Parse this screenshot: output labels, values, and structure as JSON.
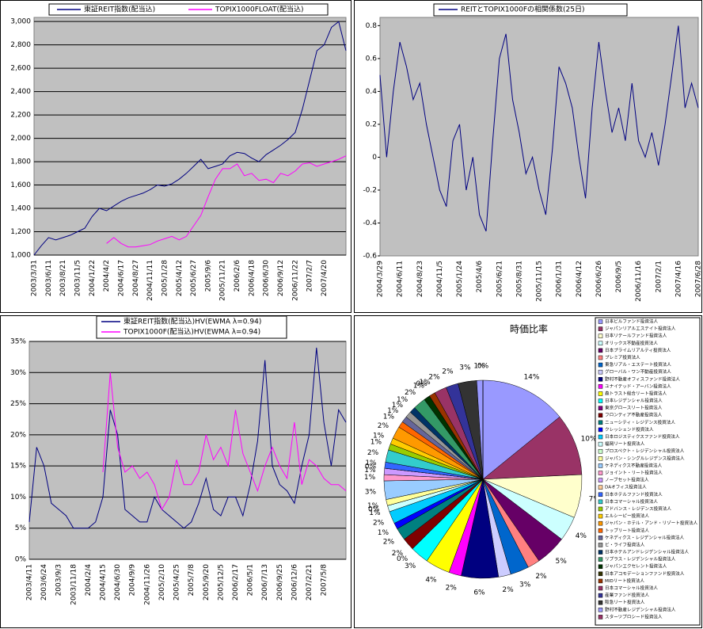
{
  "chart_data": [
    {
      "type": "line",
      "legend": "top",
      "grid": true,
      "categories": [
        "2003/3/31",
        null,
        "2003/6/11",
        null,
        "2003/8/21",
        null,
        "2003/11/5",
        null,
        "2004/1/22",
        null,
        "2004/4/2",
        null,
        "2004/6/17",
        null,
        "2004/8/27",
        null,
        "2004/11/11",
        null,
        "2005/1/28",
        null,
        "2005/4/12",
        null,
        "2005/6/27",
        null,
        "2005/9/6",
        null,
        "2005/11/21",
        null,
        "2006/2/6",
        null,
        "2006/4/18",
        null,
        "2006/6/30",
        null,
        "2006/9/12",
        null,
        "2006/11/22",
        null,
        "2007/2/7",
        null,
        "2007/4/20",
        null,
        null,
        null
      ],
      "ylim": [
        1000,
        3035
      ],
      "yticks": [
        {
          "value": 1000,
          "label": "1,000"
        },
        {
          "value": 1200,
          "label": "1,200"
        },
        {
          "value": 1400,
          "label": "1,400"
        },
        {
          "value": 1600,
          "label": "1,600"
        },
        {
          "value": 1800,
          "label": "1,800"
        },
        {
          "value": 2000,
          "label": "2,000"
        },
        {
          "value": 2200,
          "label": "2,200"
        },
        {
          "value": 2400,
          "label": "2,400"
        },
        {
          "value": 2600,
          "label": "2,600"
        },
        {
          "value": 2800,
          "label": "2,800"
        },
        {
          "value": 3000,
          "label": "3,000"
        }
      ],
      "series": [
        {
          "name": "東証REIT指数(配当込)",
          "color": "#000080",
          "values": [
            1000,
            1080,
            1150,
            1130,
            1150,
            1170,
            1200,
            1230,
            1330,
            1400,
            1380,
            1420,
            1460,
            1490,
            1510,
            1530,
            1560,
            1600,
            1590,
            1610,
            1650,
            1700,
            1760,
            1820,
            1740,
            1760,
            1780,
            1850,
            1880,
            1870,
            1830,
            1800,
            1860,
            1900,
            1940,
            1990,
            2050,
            2250,
            2500,
            2750,
            2800,
            2950,
            3000,
            2750
          ]
        },
        {
          "name": "TOPIX1000FLOAT(配当込)",
          "color": "#ff00ff",
          "values": [
            null,
            null,
            null,
            null,
            null,
            null,
            null,
            null,
            null,
            null,
            1100,
            1150,
            1100,
            1070,
            1070,
            1080,
            1090,
            1120,
            1140,
            1160,
            1130,
            1160,
            1250,
            1340,
            1500,
            1650,
            1740,
            1740,
            1780,
            1680,
            1700,
            1640,
            1650,
            1620,
            1700,
            1680,
            1720,
            1780,
            1790,
            1760,
            1780,
            1800,
            1820,
            1850
          ]
        }
      ]
    },
    {
      "type": "line",
      "legend": "top",
      "grid": false,
      "categories": [
        "2004/3/29",
        null,
        null,
        "2004/6/11",
        null,
        null,
        "2004/8/23",
        null,
        null,
        "2004/11/5",
        null,
        null,
        "2005/1/24",
        null,
        null,
        "2005/4/6",
        null,
        null,
        "2005/6/21",
        null,
        null,
        "2005/8/31",
        null,
        null,
        "2005/11/15",
        null,
        null,
        "2006/1/31",
        null,
        null,
        "2006/4/12",
        null,
        null,
        "2006/6/26",
        null,
        null,
        "2006/9/5",
        null,
        null,
        "2006/11/16",
        null,
        null,
        "2007/2/1",
        null,
        null,
        "2007/4/16",
        null,
        null,
        "2007/6/28"
      ],
      "ylim": [
        -0.6,
        0.85
      ],
      "yticks": [
        -0.6,
        -0.4,
        -0.2,
        0,
        0.2,
        0.4,
        0.6,
        0.8
      ],
      "series": [
        {
          "name": "REITとTOPIX1000Fの相関係数(25日)",
          "color": "#000080",
          "values": [
            0.5,
            0.0,
            0.4,
            0.7,
            0.55,
            0.35,
            0.45,
            0.2,
            0.0,
            -0.2,
            -0.3,
            0.1,
            0.2,
            -0.2,
            0.0,
            -0.35,
            -0.45,
            0.1,
            0.6,
            0.75,
            0.35,
            0.15,
            -0.1,
            0.0,
            -0.2,
            -0.35,
            0.05,
            0.55,
            0.45,
            0.3,
            0.0,
            -0.25,
            0.3,
            0.7,
            0.4,
            0.15,
            0.3,
            0.1,
            0.45,
            0.1,
            0.0,
            0.15,
            -0.05,
            0.2,
            0.5,
            0.8,
            0.3,
            0.45,
            0.3
          ]
        }
      ]
    },
    {
      "type": "line",
      "legend": "top",
      "grid": true,
      "categories": [
        "2003/4/11",
        null,
        "2003/6/24",
        null,
        "2003/9/3",
        null,
        "2003/11/18",
        null,
        "2004/2/4",
        null,
        "2004/4/15",
        null,
        "2004/6/30",
        null,
        "2004/9/9",
        null,
        "2004/11/26",
        null,
        "2005/2/10",
        null,
        "2005/4/25",
        null,
        "2005/7/8",
        null,
        "2005/9/20",
        null,
        "2005/12/5",
        null,
        "2006/2/17",
        null,
        "2006/5/1",
        null,
        "2006/7/13",
        null,
        "2006/9/25",
        null,
        "2006/12/6",
        null,
        "2007/2/21",
        null,
        "2007/5/8",
        null,
        null,
        null
      ],
      "ylim": [
        0,
        35
      ],
      "yticks": [
        {
          "value": 0,
          "label": "0%"
        },
        {
          "value": 5,
          "label": "5%"
        },
        {
          "value": 10,
          "label": "10%"
        },
        {
          "value": 15,
          "label": "15%"
        },
        {
          "value": 20,
          "label": "20%"
        },
        {
          "value": 25,
          "label": "25%"
        },
        {
          "value": 30,
          "label": "30%"
        },
        {
          "value": 35,
          "label": "35%"
        }
      ],
      "series": [
        {
          "name": "東証REIT指数(配当込)HV(EWMA λ=0.94)",
          "color": "#000080",
          "values": [
            6,
            18,
            15,
            9,
            8,
            7,
            5,
            5,
            5,
            6,
            10,
            24,
            20,
            8,
            7,
            6,
            6,
            10,
            8,
            7,
            6,
            5,
            6,
            9,
            13,
            8,
            7,
            10,
            10,
            7,
            12,
            19,
            32,
            15,
            12,
            11,
            9,
            15,
            20,
            34,
            22,
            15,
            24,
            22
          ]
        },
        {
          "name": "TOPIX1000F(配当込)HV(EWMA λ=0.94)",
          "color": "#ff00ff",
          "values": [
            null,
            null,
            null,
            null,
            null,
            null,
            null,
            null,
            null,
            null,
            14,
            30,
            18,
            14,
            15,
            13,
            14,
            12,
            8,
            10,
            16,
            12,
            12,
            14,
            20,
            16,
            18,
            15,
            24,
            17,
            14,
            11,
            15,
            18,
            15,
            13,
            22,
            12,
            16,
            15,
            13,
            12,
            12,
            11
          ]
        }
      ]
    },
    {
      "type": "pie",
      "title": "時価比率",
      "legend": "right",
      "categories": [
        "日本ビルファンド投資法人",
        "ジャパンリアルエステイト投資法人",
        "日本リテールファンド投資法人",
        "オリックス不動産投資法人",
        "日本プライムリアルティ投資法人",
        "プレミア投資法人",
        "東急リアル・エステート投資法人",
        "グローバル・ワン不動産投資法人",
        "野村不動産オフィスファンド投資法人",
        "ユナイテッド・アーバン投資法人",
        "森トラスト総合リート投資法人",
        "日本レジデンシャル投資法人",
        "東京グロースリート投資法人",
        "フロンティア不動産投資法人",
        "ニューシティ・レジデンス投資法人",
        "クレッシェンド投資法人",
        "日本ロジスティクスファンド投資法人",
        "福岡リート投資法人",
        "プロスペクト・レジデンシャル投資法人",
        "ジャパン・シングルレジデンス投資法人",
        "ケネディクス不動産投資法人",
        "ジョイント・リート投資法人",
        "ノーブセット投資法人",
        "DAオフィス投資法人",
        "日本ホテルファンド投資法人",
        "日本コマーシャル投資法人",
        "アドバンス・レジデンス投資法人",
        "エルシーピー投資法人",
        "ジャパン・ホテル・アンド・リゾート投資法人",
        "トップリート投資法人",
        "ケネディクス・レジデンシャル投資法人",
        "ビ・ライフ投資法人",
        "日本ホテルアンドレジデンシャル投資法人",
        "リプラス・レジデンシャル投資法人",
        "ジャパンエクセレント投資法人",
        "日本アコモデーションファンド投資法人",
        "MIDリート投資法人",
        "日本コマーシャル投資法人",
        "産業ファンド投資法人",
        "阪急リート投資法人",
        "野村不動産レジデンシャル投資法人",
        "スターツプロシード投資法人"
      ],
      "values": [
        14,
        10,
        7,
        4,
        5,
        2,
        3,
        2,
        6,
        2,
        4,
        3,
        0,
        2,
        2,
        1,
        2,
        1,
        0,
        1,
        3,
        1,
        1,
        0,
        1,
        2,
        1,
        1,
        2,
        1,
        1,
        1,
        1,
        2,
        1,
        0,
        1,
        2,
        2,
        3,
        1,
        0
      ],
      "value_labels": [
        "14%",
        "10%",
        "7%",
        "4%",
        "5%",
        "2%",
        "3%",
        "2%",
        "6%",
        "2%",
        "4%",
        "3%",
        "0%",
        "2%",
        "2%",
        "1%",
        "2%",
        "1%",
        "0%",
        "1%",
        "3%",
        "1%",
        "1%",
        "0%",
        "1%",
        "2%",
        "1%",
        "1%",
        "2%",
        "1%",
        "1%",
        "1%",
        "1%",
        "2%",
        "1%",
        "0%",
        "1%",
        "2%",
        "2%",
        "3%",
        "1%",
        "0%"
      ],
      "colors": [
        "#9999ff",
        "#993366",
        "#ffffcc",
        "#ccffff",
        "#660066",
        "#ff8080",
        "#0066cc",
        "#ccccff",
        "#000080",
        "#ff00ff",
        "#ffff00",
        "#00ffff",
        "#800080",
        "#800000",
        "#008080",
        "#0000ff",
        "#00ccff",
        "#ccffff",
        "#ccffcc",
        "#ffff99",
        "#99ccff",
        "#ff99cc",
        "#cc99ff",
        "#ffcc99",
        "#3366ff",
        "#33cccc",
        "#99cc00",
        "#ffcc00",
        "#ff9900",
        "#ff6600",
        "#666699",
        "#969696",
        "#003366",
        "#339966",
        "#003300",
        "#333300",
        "#993300",
        "#993366",
        "#333399",
        "#333333",
        "#9999ff",
        "#993366"
      ]
    }
  ]
}
